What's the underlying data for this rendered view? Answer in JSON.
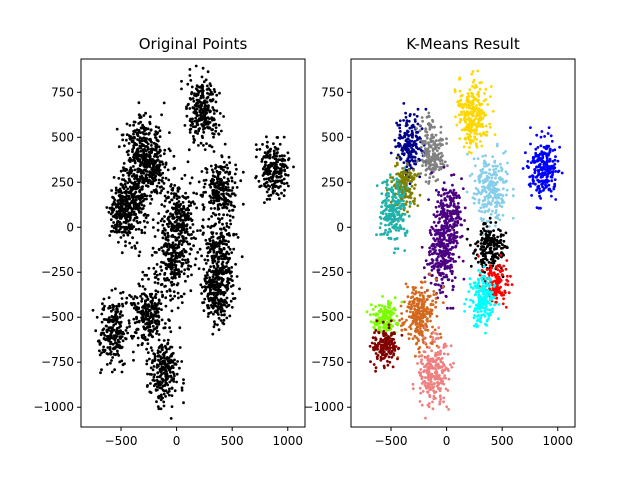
{
  "chart_data": [
    {
      "type": "scatter",
      "title": "Original Points",
      "xlabel": "",
      "ylabel": "",
      "xlim": [
        -860,
        1155
      ],
      "ylim": [
        -1110,
        935
      ],
      "x_ticks": [
        -500,
        0,
        500,
        1000
      ],
      "y_ticks": [
        -1000,
        -750,
        -500,
        -250,
        0,
        250,
        500,
        750
      ],
      "x_tick_labels": [
        "−500",
        "0",
        "500",
        "1000"
      ],
      "y_tick_labels": [
        "−1000",
        "−750",
        "−500",
        "−250",
        "0",
        "250",
        "500",
        "750"
      ],
      "grid": false,
      "legend": "none",
      "point_color": "#000000",
      "clusters": [
        {
          "cx": 240,
          "cy": 630,
          "sx": 70,
          "sy": 95,
          "n": 260
        },
        {
          "cx": -310,
          "cy": 440,
          "sx": 80,
          "sy": 90,
          "n": 260
        },
        {
          "cx": -220,
          "cy": 330,
          "sx": 70,
          "sy": 70,
          "n": 160
        },
        {
          "cx": -380,
          "cy": 180,
          "sx": 70,
          "sy": 85,
          "n": 220
        },
        {
          "cx": -470,
          "cy": 80,
          "sx": 65,
          "sy": 85,
          "n": 220
        },
        {
          "cx": 870,
          "cy": 330,
          "sx": 65,
          "sy": 80,
          "n": 220
        },
        {
          "cx": 390,
          "cy": 210,
          "sx": 75,
          "sy": 90,
          "n": 240
        },
        {
          "cx": 30,
          "cy": 50,
          "sx": 70,
          "sy": 110,
          "n": 240
        },
        {
          "cx": -40,
          "cy": -170,
          "sx": 70,
          "sy": 110,
          "n": 240
        },
        {
          "cx": 380,
          "cy": -160,
          "sx": 75,
          "sy": 110,
          "n": 260
        },
        {
          "cx": 370,
          "cy": -370,
          "sx": 70,
          "sy": 80,
          "n": 220
        },
        {
          "cx": -570,
          "cy": -580,
          "sx": 65,
          "sy": 85,
          "n": 240
        },
        {
          "cx": -260,
          "cy": -480,
          "sx": 70,
          "sy": 90,
          "n": 240
        },
        {
          "cx": -120,
          "cy": -810,
          "sx": 65,
          "sy": 90,
          "n": 240
        }
      ]
    },
    {
      "type": "scatter",
      "title": "K-Means Result",
      "xlabel": "",
      "ylabel": "",
      "xlim": [
        -860,
        1155
      ],
      "ylim": [
        -1110,
        935
      ],
      "x_ticks": [
        -500,
        0,
        500,
        1000
      ],
      "y_ticks": [
        -1000,
        -750,
        -500,
        -250,
        0,
        250,
        500,
        750
      ],
      "x_tick_labels": [
        "−500",
        "0",
        "500",
        "1000"
      ],
      "y_tick_labels": [
        "−1000",
        "−750",
        "−500",
        "−250",
        "0",
        "250",
        "500",
        "750"
      ],
      "grid": false,
      "legend": "none",
      "clusters": [
        {
          "color": "#ffd700",
          "cx": 240,
          "cy": 630,
          "sx": 70,
          "sy": 95,
          "n": 260
        },
        {
          "color": "#00008b",
          "cx": -330,
          "cy": 450,
          "sx": 60,
          "sy": 85,
          "n": 200
        },
        {
          "color": "#808080",
          "cx": -130,
          "cy": 430,
          "sx": 55,
          "sy": 85,
          "n": 180
        },
        {
          "color": "#808000",
          "cx": -380,
          "cy": 230,
          "sx": 55,
          "sy": 65,
          "n": 170
        },
        {
          "color": "#20b2aa",
          "cx": -480,
          "cy": 90,
          "sx": 65,
          "sy": 85,
          "n": 220
        },
        {
          "color": "#0000ff",
          "cx": 870,
          "cy": 330,
          "sx": 65,
          "sy": 80,
          "n": 240
        },
        {
          "color": "#87ceeb",
          "cx": 390,
          "cy": 210,
          "sx": 75,
          "sy": 90,
          "n": 240
        },
        {
          "color": "#4b0082",
          "cx": 20,
          "cy": 60,
          "sx": 65,
          "sy": 100,
          "n": 230
        },
        {
          "color": "#4b0082",
          "cx": -40,
          "cy": -170,
          "sx": 70,
          "sy": 100,
          "n": 230
        },
        {
          "color": "#000000",
          "cx": 380,
          "cy": -110,
          "sx": 70,
          "sy": 70,
          "n": 200
        },
        {
          "color": "#ff0000",
          "cx": 440,
          "cy": -310,
          "sx": 55,
          "sy": 55,
          "n": 150
        },
        {
          "color": "#00ffff",
          "cx": 330,
          "cy": -400,
          "sx": 60,
          "sy": 70,
          "n": 190
        },
        {
          "color": "#d2691e",
          "cx": -240,
          "cy": -490,
          "sx": 75,
          "sy": 90,
          "n": 260
        },
        {
          "color": "#7cfc00",
          "cx": -570,
          "cy": -510,
          "sx": 60,
          "sy": 45,
          "n": 150
        },
        {
          "color": "#800000",
          "cx": -570,
          "cy": -660,
          "sx": 60,
          "sy": 50,
          "n": 160
        },
        {
          "color": "#f08080",
          "cx": -120,
          "cy": -810,
          "sx": 65,
          "sy": 90,
          "n": 240
        }
      ]
    }
  ]
}
